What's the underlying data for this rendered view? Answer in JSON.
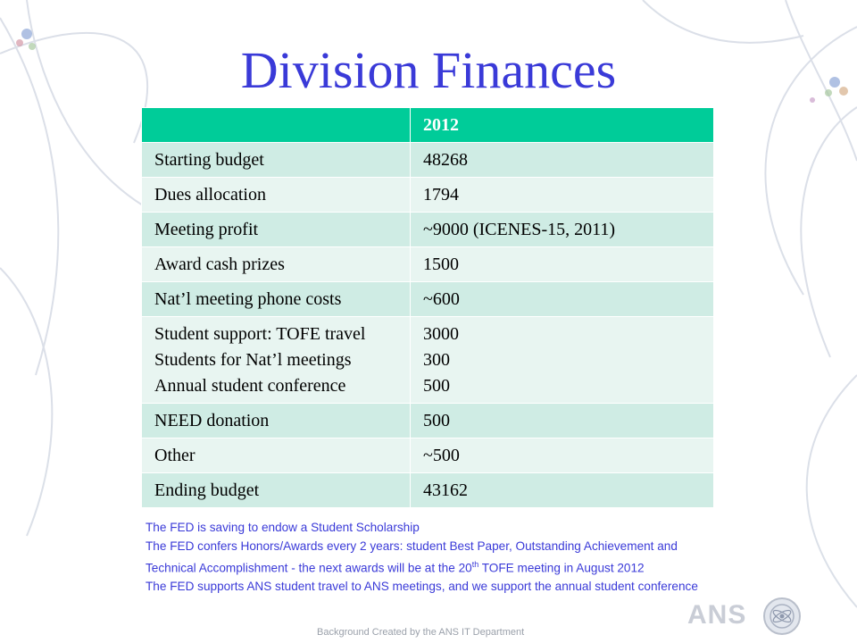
{
  "title": "Division Finances",
  "table": {
    "header": [
      "",
      "2012"
    ],
    "rows": [
      {
        "label": "Starting budget",
        "value": "48268"
      },
      {
        "label": "Dues allocation",
        "value": "1794"
      },
      {
        "label": "Meeting profit",
        "value": "~9000 (ICENES-15, 2011)"
      },
      {
        "label": "Award cash prizes",
        "value": "1500"
      },
      {
        "label": "Nat’l meeting phone costs",
        "value": "~600"
      },
      {
        "label_lines": [
          "Student support: TOFE travel",
          "Students for Nat’l meetings",
          "Annual student conference"
        ],
        "value_lines": [
          "3000",
          "300",
          "500"
        ]
      },
      {
        "label": "NEED donation",
        "value": "500"
      },
      {
        "label": "Other",
        "value": "~500"
      },
      {
        "label": "Ending budget",
        "value": "43162"
      }
    ]
  },
  "notes": {
    "line1": "The FED is saving to endow a Student Scholarship",
    "line2": "The FED confers Honors/Awards every 2 years: student Best Paper, Outstanding Achievement and",
    "line3_pre": "Technical Accomplishment - the next awards will be at the 20",
    "line3_sup": "th",
    "line3_post": " TOFE meeting in August 2012",
    "line4": "The FED supports ANS student travel to ANS meetings, and we support the annual student conference"
  },
  "footer": {
    "logo_text": "ANS",
    "credit": "Background Created by the ANS IT Department"
  },
  "colors": {
    "header": "#00cc99",
    "row_dark": "#cfece4",
    "row_light": "#e8f5f1",
    "title": "#3a3ad8"
  }
}
